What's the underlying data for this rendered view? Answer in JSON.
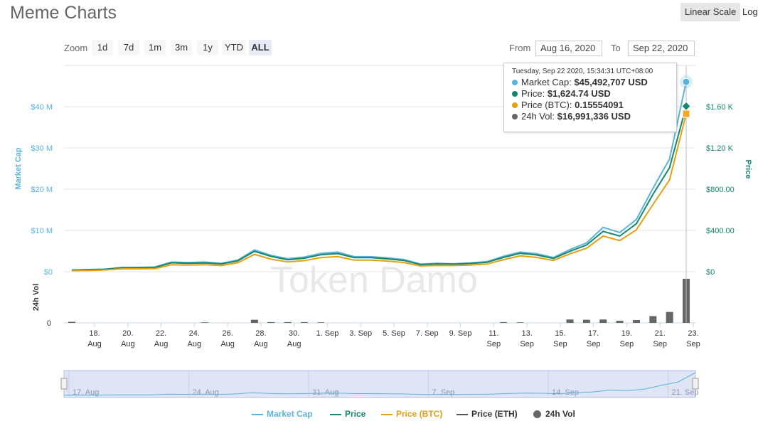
{
  "header": {
    "title": "Meme Charts",
    "linear_label": "Linear Scale",
    "log_label": "Log"
  },
  "zoom": {
    "label": "Zoom",
    "buttons": [
      "1d",
      "7d",
      "1m",
      "3m",
      "1y",
      "YTD",
      "ALL"
    ],
    "active": "ALL"
  },
  "range": {
    "from_label": "From",
    "from_value": "Aug 16, 2020",
    "to_label": "To",
    "to_value": "Sep 22, 2020"
  },
  "watermark": "Token Damo",
  "tooltip": {
    "header": "Tuesday, Sep 22 2020, 15:34:31 UTC+08:00",
    "rows": [
      {
        "label": "Market Cap:",
        "value": "$45,492,707 USD",
        "color": "#5ab4dc"
      },
      {
        "label": "Price:",
        "value": "$1,624.74 USD",
        "color": "#14876e"
      },
      {
        "label": "Price (BTC):",
        "value": "0.15554091",
        "color": "#e6a00f"
      },
      {
        "label": "24h Vol:",
        "value": "$16,991,336 USD",
        "color": "#666666"
      }
    ]
  },
  "legend": [
    {
      "label": "Market Cap",
      "color": "#5ab4dc",
      "type": "line"
    },
    {
      "label": "Price",
      "color": "#14876e",
      "type": "line"
    },
    {
      "label": "Price (BTC)",
      "color": "#e6a00f",
      "type": "line"
    },
    {
      "label": "Price (ETH)",
      "color": "#555555",
      "type": "line"
    },
    {
      "label": "24h Vol",
      "color": "#666666",
      "type": "dot"
    }
  ],
  "chart_data": {
    "type": "line",
    "x": [
      "Aug 16",
      "Aug 17",
      "Aug 18",
      "Aug 19",
      "Aug 20",
      "Aug 21",
      "Aug 22",
      "Aug 23",
      "Aug 24",
      "Aug 25",
      "Aug 26",
      "Aug 27",
      "Aug 28",
      "Aug 29",
      "Aug 30",
      "Aug 31",
      "Sep 1",
      "Sep 2",
      "Sep 3",
      "Sep 4",
      "Sep 5",
      "Sep 6",
      "Sep 7",
      "Sep 8",
      "Sep 9",
      "Sep 10",
      "Sep 11",
      "Sep 12",
      "Sep 13",
      "Sep 14",
      "Sep 15",
      "Sep 16",
      "Sep 17",
      "Sep 18",
      "Sep 19",
      "Sep 20",
      "Sep 21",
      "Sep 22"
    ],
    "series": [
      {
        "name": "Market Cap",
        "axis": "left",
        "color": "#5ab4dc",
        "values": [
          0.4,
          0.5,
          0.6,
          1.0,
          1.0,
          1.1,
          2.3,
          2.2,
          2.3,
          2.0,
          2.8,
          5.2,
          3.9,
          3.1,
          3.5,
          4.4,
          4.7,
          3.6,
          3.6,
          3.3,
          2.9,
          1.8,
          2.0,
          1.9,
          2.1,
          2.4,
          3.7,
          4.7,
          4.3,
          3.4,
          5.3,
          6.9,
          10.6,
          9.4,
          12.5,
          20.0,
          27.0,
          45.5
        ]
      },
      {
        "name": "Price",
        "axis": "right",
        "color": "#14876e",
        "values": [
          16,
          20,
          24,
          38,
          39,
          42,
          87,
          82,
          86,
          76,
          106,
          200,
          150,
          117,
          132,
          166,
          178,
          138,
          138,
          126,
          110,
          70,
          76,
          74,
          80,
          92,
          140,
          180,
          164,
          130,
          200,
          262,
          395,
          350,
          470,
          760,
          1020,
          1624.74
        ]
      },
      {
        "name": "Price (BTC)",
        "axis": "right",
        "color": "#e6a00f",
        "values": [
          10,
          12,
          17,
          28,
          28,
          30,
          68,
          64,
          68,
          60,
          88,
          170,
          122,
          96,
          108,
          138,
          148,
          114,
          114,
          104,
          90,
          56,
          61,
          60,
          65,
          75,
          118,
          155,
          140,
          110,
          175,
          230,
          350,
          305,
          410,
          660,
          900,
          1550
        ]
      }
    ],
    "volume": {
      "name": "24h Vol",
      "values": [
        0.4,
        0,
        0,
        0,
        0,
        0,
        0,
        0,
        0.2,
        0,
        0,
        1.2,
        0.3,
        0.3,
        0.3,
        0.2,
        0,
        0,
        0,
        0,
        0,
        0,
        0,
        0,
        0,
        0,
        0.3,
        0.2,
        0,
        0,
        1.3,
        1.2,
        1.3,
        0.8,
        1.1,
        2.6,
        4.2,
        17.0
      ]
    },
    "left_axis": {
      "label": "Market Cap",
      "ticks": [
        "$0",
        "$10 M",
        "$20 M",
        "$30 M",
        "$40 M"
      ],
      "min": 0,
      "max": 45
    },
    "right_axis": {
      "label": "Price",
      "ticks": [
        "$0",
        "$400.00",
        "$800.00",
        "$1.20 K",
        "$1.60 K"
      ],
      "min": 0,
      "max": 1620
    },
    "volume_axis": {
      "label": "24h Vol",
      "ticks": [
        "0"
      ]
    },
    "x_ticks": [
      "18.|Aug",
      "20.|Aug",
      "22.|Aug",
      "24.|Aug",
      "26.|Aug",
      "28.|Aug",
      "30.|Aug",
      "1. Sep",
      "3. Sep",
      "5. Sep",
      "7. Sep",
      "9. Sep",
      "11.|Sep",
      "13.|Sep",
      "15.|Sep",
      "17.|Sep",
      "19.|Sep",
      "21.|Sep",
      "23.|Sep"
    ],
    "navigator_ticks": [
      "17. Aug",
      "24. Aug",
      "31. Aug",
      "7. Sep",
      "14. Sep",
      "21. Sep"
    ]
  }
}
